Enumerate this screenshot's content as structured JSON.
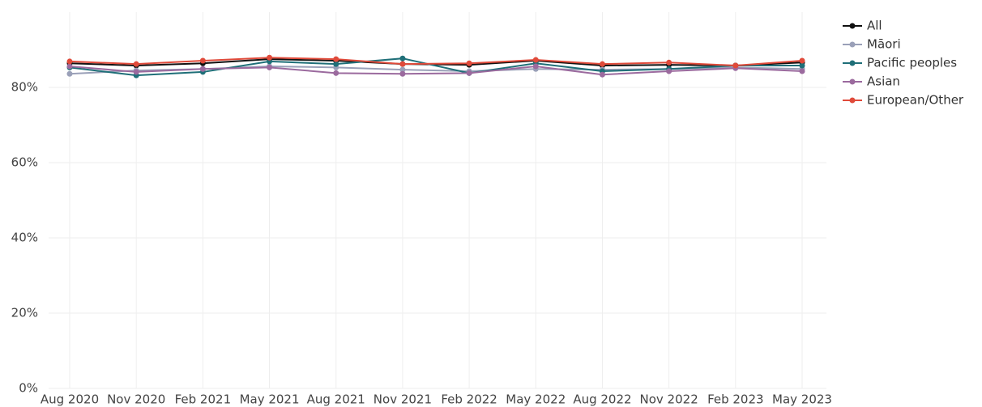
{
  "chart_data": {
    "type": "line",
    "categories": [
      "Aug 2020",
      "Nov 2020",
      "Feb 2021",
      "May 2021",
      "Aug 2021",
      "Nov 2021",
      "Feb 2022",
      "May 2022",
      "Aug 2022",
      "Nov 2022",
      "Feb 2023",
      "May 2023"
    ],
    "series": [
      {
        "name": "All",
        "color": "#111111",
        "values": [
          86.4,
          85.8,
          86.4,
          87.5,
          87.1,
          86.2,
          86.0,
          87.1,
          85.8,
          86.0,
          85.8,
          86.6
        ]
      },
      {
        "name": "Māori",
        "color": "#9aa0b8",
        "values": [
          83.6,
          84.5,
          84.9,
          85.6,
          85.3,
          84.7,
          84.3,
          84.9,
          84.7,
          84.9,
          85.3,
          84.9
        ]
      },
      {
        "name": "Pacific peoples",
        "color": "#1f6f78",
        "values": [
          85.3,
          83.2,
          84.1,
          86.9,
          86.2,
          87.7,
          83.8,
          86.4,
          84.3,
          84.9,
          85.8,
          85.8
        ]
      },
      {
        "name": "Asian",
        "color": "#9b6a9e",
        "values": [
          85.6,
          84.1,
          84.9,
          85.3,
          83.8,
          83.6,
          83.8,
          85.6,
          83.4,
          84.3,
          85.1,
          84.3
        ]
      },
      {
        "name": "European/Other",
        "color": "#e04a3a",
        "values": [
          86.9,
          86.2,
          87.1,
          87.9,
          87.5,
          86.2,
          86.4,
          87.3,
          86.2,
          86.6,
          85.8,
          87.1
        ]
      }
    ],
    "ylim": [
      0,
      100
    ],
    "yticks": [
      {
        "value": 0,
        "label": "0%"
      },
      {
        "value": 20,
        "label": "20%"
      },
      {
        "value": 40,
        "label": "40%"
      },
      {
        "value": 60,
        "label": "60%"
      },
      {
        "value": 80,
        "label": "80%"
      }
    ],
    "grid": true,
    "legend": "right"
  }
}
